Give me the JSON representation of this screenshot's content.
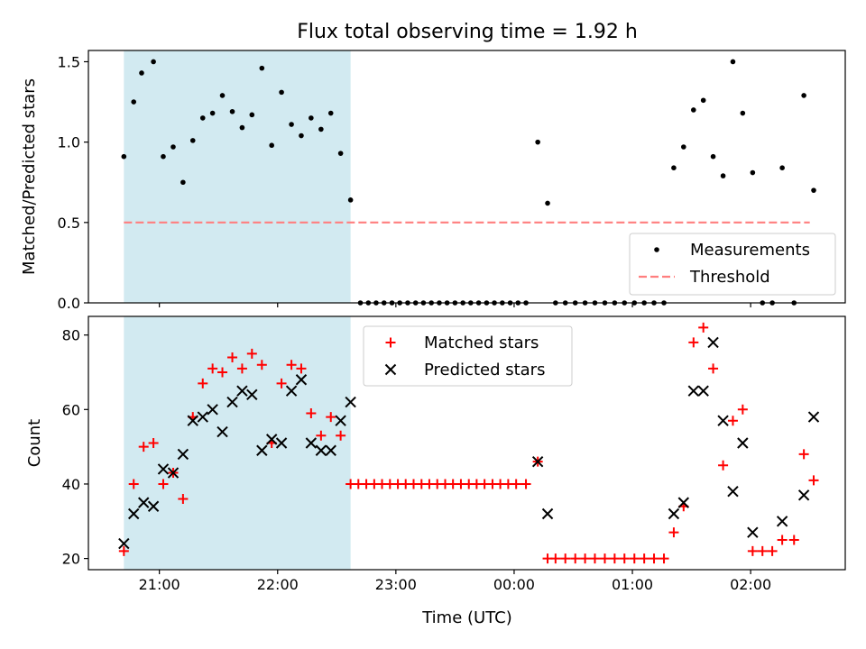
{
  "title": "Flux total observing time = 1.92 h",
  "xlabel": "Time (UTC)",
  "colors": {
    "shade": "#add8e6",
    "measurement": "#000000",
    "threshold": "#ff7f7f",
    "matched": "#ff0000",
    "predicted": "#000000"
  },
  "chart_data": [
    {
      "type": "scatter",
      "ylabel": "Matched/Predicted stars",
      "x_axis": {
        "unit": "hours since 00:00 UTC",
        "xlim": [
          -3.6,
          2.8
        ],
        "ticks": [
          -3,
          -2,
          -1,
          0,
          1,
          2
        ],
        "tick_labels": [
          "21:00",
          "22:00",
          "23:00",
          "00:00",
          "01:00",
          "02:00"
        ],
        "show_tick_labels": false
      },
      "ylim": [
        0,
        1.57
      ],
      "yticks": [
        0.0,
        0.5,
        1.0,
        1.5
      ],
      "ytick_labels": [
        "0.0",
        "0.5",
        "1.0",
        "1.5"
      ],
      "shaded_interval": [
        -3.3,
        -1.383
      ],
      "legend": {
        "position": "lower right",
        "entries": [
          "Measurements",
          "Threshold"
        ]
      },
      "threshold": {
        "name": "Threshold",
        "y": 0.5,
        "x_range": [
          -3.3,
          2.5
        ]
      },
      "series": [
        {
          "name": "Measurements",
          "marker": "dot",
          "points": [
            [
              -3.3,
              0.91
            ],
            [
              -3.217,
              1.25
            ],
            [
              -3.15,
              1.43
            ],
            [
              -3.05,
              1.5
            ],
            [
              -2.967,
              0.91
            ],
            [
              -2.883,
              0.97
            ],
            [
              -2.8,
              0.75
            ],
            [
              -2.717,
              1.01
            ],
            [
              -2.633,
              1.15
            ],
            [
              -2.55,
              1.18
            ],
            [
              -2.467,
              1.29
            ],
            [
              -2.383,
              1.19
            ],
            [
              -2.3,
              1.09
            ],
            [
              -2.217,
              1.17
            ],
            [
              -2.133,
              1.46
            ],
            [
              -2.05,
              0.98
            ],
            [
              -1.967,
              1.31
            ],
            [
              -1.883,
              1.11
            ],
            [
              -1.8,
              1.04
            ],
            [
              -1.717,
              1.15
            ],
            [
              -1.633,
              1.08
            ],
            [
              -1.55,
              1.18
            ],
            [
              -1.467,
              0.93
            ],
            [
              -1.383,
              0.64
            ],
            [
              -1.3,
              0.0
            ],
            [
              -1.233,
              0.0
            ],
            [
              -1.167,
              0.0
            ],
            [
              -1.1,
              0.0
            ],
            [
              -1.033,
              0.0
            ],
            [
              -0.967,
              0.0
            ],
            [
              -0.9,
              0.0
            ],
            [
              -0.833,
              0.0
            ],
            [
              -0.767,
              0.0
            ],
            [
              -0.7,
              0.0
            ],
            [
              -0.633,
              0.0
            ],
            [
              -0.567,
              0.0
            ],
            [
              -0.5,
              0.0
            ],
            [
              -0.433,
              0.0
            ],
            [
              -0.367,
              0.0
            ],
            [
              -0.3,
              0.0
            ],
            [
              -0.233,
              0.0
            ],
            [
              -0.167,
              0.0
            ],
            [
              -0.1,
              0.0
            ],
            [
              -0.033,
              0.0
            ],
            [
              0.033,
              0.0
            ],
            [
              0.1,
              0.0
            ],
            [
              0.2,
              1.0
            ],
            [
              0.283,
              0.62
            ],
            [
              0.35,
              0.0
            ],
            [
              0.433,
              0.0
            ],
            [
              0.517,
              0.0
            ],
            [
              0.6,
              0.0
            ],
            [
              0.683,
              0.0
            ],
            [
              0.767,
              0.0
            ],
            [
              0.85,
              0.0
            ],
            [
              0.933,
              0.0
            ],
            [
              1.017,
              0.0
            ],
            [
              1.1,
              0.0
            ],
            [
              1.183,
              0.0
            ],
            [
              1.267,
              0.0
            ],
            [
              1.35,
              0.84
            ],
            [
              1.433,
              0.97
            ],
            [
              1.517,
              1.2
            ],
            [
              1.6,
              1.26
            ],
            [
              1.683,
              0.91
            ],
            [
              1.767,
              0.79
            ],
            [
              1.85,
              1.5
            ],
            [
              1.933,
              1.18
            ],
            [
              2.017,
              0.81
            ],
            [
              2.1,
              0.0
            ],
            [
              2.183,
              0.0
            ],
            [
              2.267,
              0.84
            ],
            [
              2.367,
              0.0
            ],
            [
              2.45,
              1.29
            ],
            [
              2.533,
              0.7
            ]
          ]
        }
      ]
    },
    {
      "type": "scatter",
      "ylabel": "Count",
      "x_axis": {
        "unit": "hours since 00:00 UTC",
        "xlim": [
          -3.6,
          2.8
        ],
        "ticks": [
          -3,
          -2,
          -1,
          0,
          1,
          2
        ],
        "tick_labels": [
          "21:00",
          "22:00",
          "23:00",
          "00:00",
          "01:00",
          "02:00"
        ],
        "show_tick_labels": true
      },
      "ylim": [
        17,
        85
      ],
      "yticks": [
        20,
        40,
        60,
        80
      ],
      "ytick_labels": [
        "20",
        "40",
        "60",
        "80"
      ],
      "shaded_interval": [
        -3.3,
        -1.383
      ],
      "legend": {
        "position": "upper center",
        "entries": [
          "Matched stars",
          "Predicted stars"
        ]
      },
      "series": [
        {
          "name": "Matched stars",
          "marker": "plus",
          "points": [
            [
              -3.3,
              22
            ],
            [
              -3.217,
              40
            ],
            [
              -3.133,
              50
            ],
            [
              -3.05,
              51
            ],
            [
              -2.967,
              40
            ],
            [
              -2.883,
              43
            ],
            [
              -2.8,
              36
            ],
            [
              -2.717,
              58
            ],
            [
              -2.633,
              67
            ],
            [
              -2.55,
              71
            ],
            [
              -2.467,
              70
            ],
            [
              -2.383,
              74
            ],
            [
              -2.3,
              71
            ],
            [
              -2.217,
              75
            ],
            [
              -2.133,
              72
            ],
            [
              -2.05,
              51
            ],
            [
              -1.967,
              67
            ],
            [
              -1.883,
              72
            ],
            [
              -1.8,
              71
            ],
            [
              -1.717,
              59
            ],
            [
              -1.633,
              53
            ],
            [
              -1.55,
              58
            ],
            [
              -1.467,
              53
            ],
            [
              -1.383,
              40
            ],
            [
              -1.317,
              40
            ],
            [
              -1.25,
              40
            ],
            [
              -1.183,
              40
            ],
            [
              -1.117,
              40
            ],
            [
              -1.05,
              40
            ],
            [
              -0.983,
              40
            ],
            [
              -0.917,
              40
            ],
            [
              -0.85,
              40
            ],
            [
              -0.783,
              40
            ],
            [
              -0.717,
              40
            ],
            [
              -0.65,
              40
            ],
            [
              -0.583,
              40
            ],
            [
              -0.517,
              40
            ],
            [
              -0.45,
              40
            ],
            [
              -0.383,
              40
            ],
            [
              -0.317,
              40
            ],
            [
              -0.25,
              40
            ],
            [
              -0.183,
              40
            ],
            [
              -0.117,
              40
            ],
            [
              -0.05,
              40
            ],
            [
              0.017,
              40
            ],
            [
              0.1,
              40
            ],
            [
              0.2,
              46
            ],
            [
              0.283,
              20
            ],
            [
              0.35,
              20
            ],
            [
              0.433,
              20
            ],
            [
              0.517,
              20
            ],
            [
              0.6,
              20
            ],
            [
              0.683,
              20
            ],
            [
              0.767,
              20
            ],
            [
              0.85,
              20
            ],
            [
              0.933,
              20
            ],
            [
              1.017,
              20
            ],
            [
              1.1,
              20
            ],
            [
              1.183,
              20
            ],
            [
              1.267,
              20
            ],
            [
              1.35,
              27
            ],
            [
              1.433,
              34
            ],
            [
              1.517,
              78
            ],
            [
              1.6,
              82
            ],
            [
              1.683,
              71
            ],
            [
              1.767,
              45
            ],
            [
              1.85,
              57
            ],
            [
              1.933,
              60
            ],
            [
              2.017,
              22
            ],
            [
              2.1,
              22
            ],
            [
              2.183,
              22
            ],
            [
              2.267,
              25
            ],
            [
              2.367,
              25
            ],
            [
              2.45,
              48
            ],
            [
              2.533,
              41
            ]
          ]
        },
        {
          "name": "Predicted stars",
          "marker": "x",
          "points": [
            [
              -3.3,
              24
            ],
            [
              -3.217,
              32
            ],
            [
              -3.133,
              35
            ],
            [
              -3.05,
              34
            ],
            [
              -2.967,
              44
            ],
            [
              -2.883,
              43
            ],
            [
              -2.8,
              48
            ],
            [
              -2.717,
              57
            ],
            [
              -2.633,
              58
            ],
            [
              -2.55,
              60
            ],
            [
              -2.467,
              54
            ],
            [
              -2.383,
              62
            ],
            [
              -2.3,
              65
            ],
            [
              -2.217,
              64
            ],
            [
              -2.133,
              49
            ],
            [
              -2.05,
              52
            ],
            [
              -1.967,
              51
            ],
            [
              -1.883,
              65
            ],
            [
              -1.8,
              68
            ],
            [
              -1.717,
              51
            ],
            [
              -1.633,
              49
            ],
            [
              -1.55,
              49
            ],
            [
              -1.467,
              57
            ],
            [
              -1.383,
              62
            ],
            [
              0.2,
              46
            ],
            [
              0.283,
              32
            ],
            [
              1.35,
              32
            ],
            [
              1.433,
              35
            ],
            [
              1.517,
              65
            ],
            [
              1.6,
              65
            ],
            [
              1.683,
              78
            ],
            [
              1.767,
              57
            ],
            [
              1.85,
              38
            ],
            [
              1.933,
              51
            ],
            [
              2.017,
              27
            ],
            [
              2.267,
              30
            ],
            [
              2.45,
              37
            ],
            [
              2.533,
              58
            ]
          ]
        }
      ]
    }
  ]
}
